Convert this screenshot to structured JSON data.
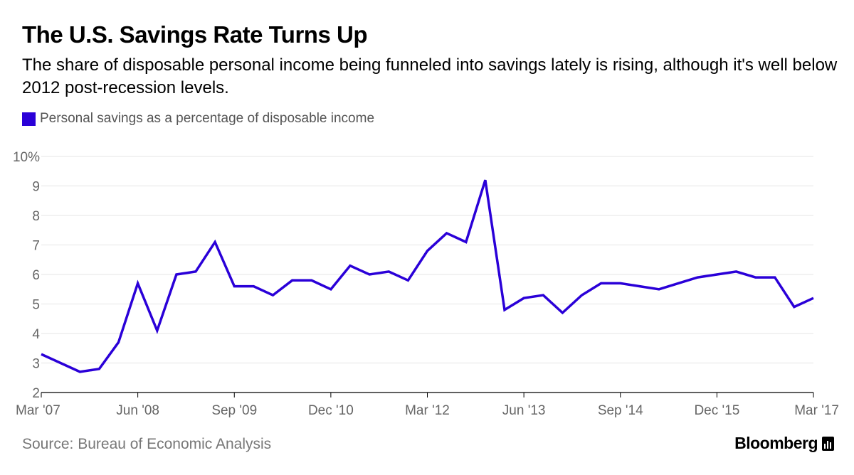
{
  "header": {
    "title": "The U.S. Savings Rate Turns Up",
    "subtitle": "The share of disposable personal income being funneled into savings lately is rising, although it's well below 2012 post-recession levels."
  },
  "footer": {
    "source": "Source: Bureau of Economic Analysis",
    "brand": "Bloomberg",
    "brand_icon": "bloomberg-chart-icon"
  },
  "colors": {
    "series": "#2a00d8",
    "grid": "#e5e5e5",
    "axis": "#000000",
    "tick_label": "#666666"
  },
  "chart_data": {
    "type": "line",
    "title": "The U.S. Savings Rate Turns Up",
    "xlabel": "",
    "ylabel": "",
    "ylim": [
      2,
      10
    ],
    "y_ticks": [
      2,
      3,
      4,
      5,
      6,
      7,
      8,
      9,
      10
    ],
    "y_tick_labels": [
      "2",
      "3",
      "4",
      "5",
      "6",
      "7",
      "8",
      "9",
      "10%"
    ],
    "x_tick_labels": [
      "Mar '07",
      "Jun '08",
      "Sep '09",
      "Dec '10",
      "Mar '12",
      "Jun '13",
      "Sep '14",
      "Dec '15",
      "Mar '17"
    ],
    "grid": true,
    "legend": "top-left",
    "x": [
      "Mar '07",
      "Jun '07",
      "Sep '07",
      "Dec '07",
      "Mar '08",
      "Jun '08",
      "Sep '08",
      "Dec '08",
      "Mar '09",
      "Jun '09",
      "Sep '09",
      "Dec '09",
      "Mar '10",
      "Jun '10",
      "Sep '10",
      "Dec '10",
      "Mar '11",
      "Jun '11",
      "Sep '11",
      "Dec '11",
      "Mar '12",
      "Jun '12",
      "Sep '12",
      "Dec '12",
      "Mar '13",
      "Jun '13",
      "Sep '13",
      "Dec '13",
      "Mar '14",
      "Jun '14",
      "Sep '14",
      "Dec '14",
      "Mar '15",
      "Jun '15",
      "Sep '15",
      "Dec '15",
      "Mar '16",
      "Jun '16",
      "Sep '16",
      "Dec '16",
      "Mar '17"
    ],
    "series": [
      {
        "name": "Personal savings as a percentage of disposable income",
        "values": [
          3.3,
          3.0,
          2.7,
          2.8,
          3.7,
          5.7,
          4.1,
          6.0,
          6.1,
          7.1,
          5.6,
          5.6,
          5.3,
          5.8,
          5.8,
          5.5,
          6.3,
          6.0,
          6.1,
          5.8,
          6.8,
          7.4,
          7.1,
          9.2,
          4.8,
          5.2,
          5.3,
          4.7,
          5.3,
          5.7,
          5.7,
          5.6,
          5.5,
          5.7,
          5.9,
          6.0,
          6.1,
          5.9,
          5.9,
          4.9,
          5.2
        ]
      }
    ]
  }
}
